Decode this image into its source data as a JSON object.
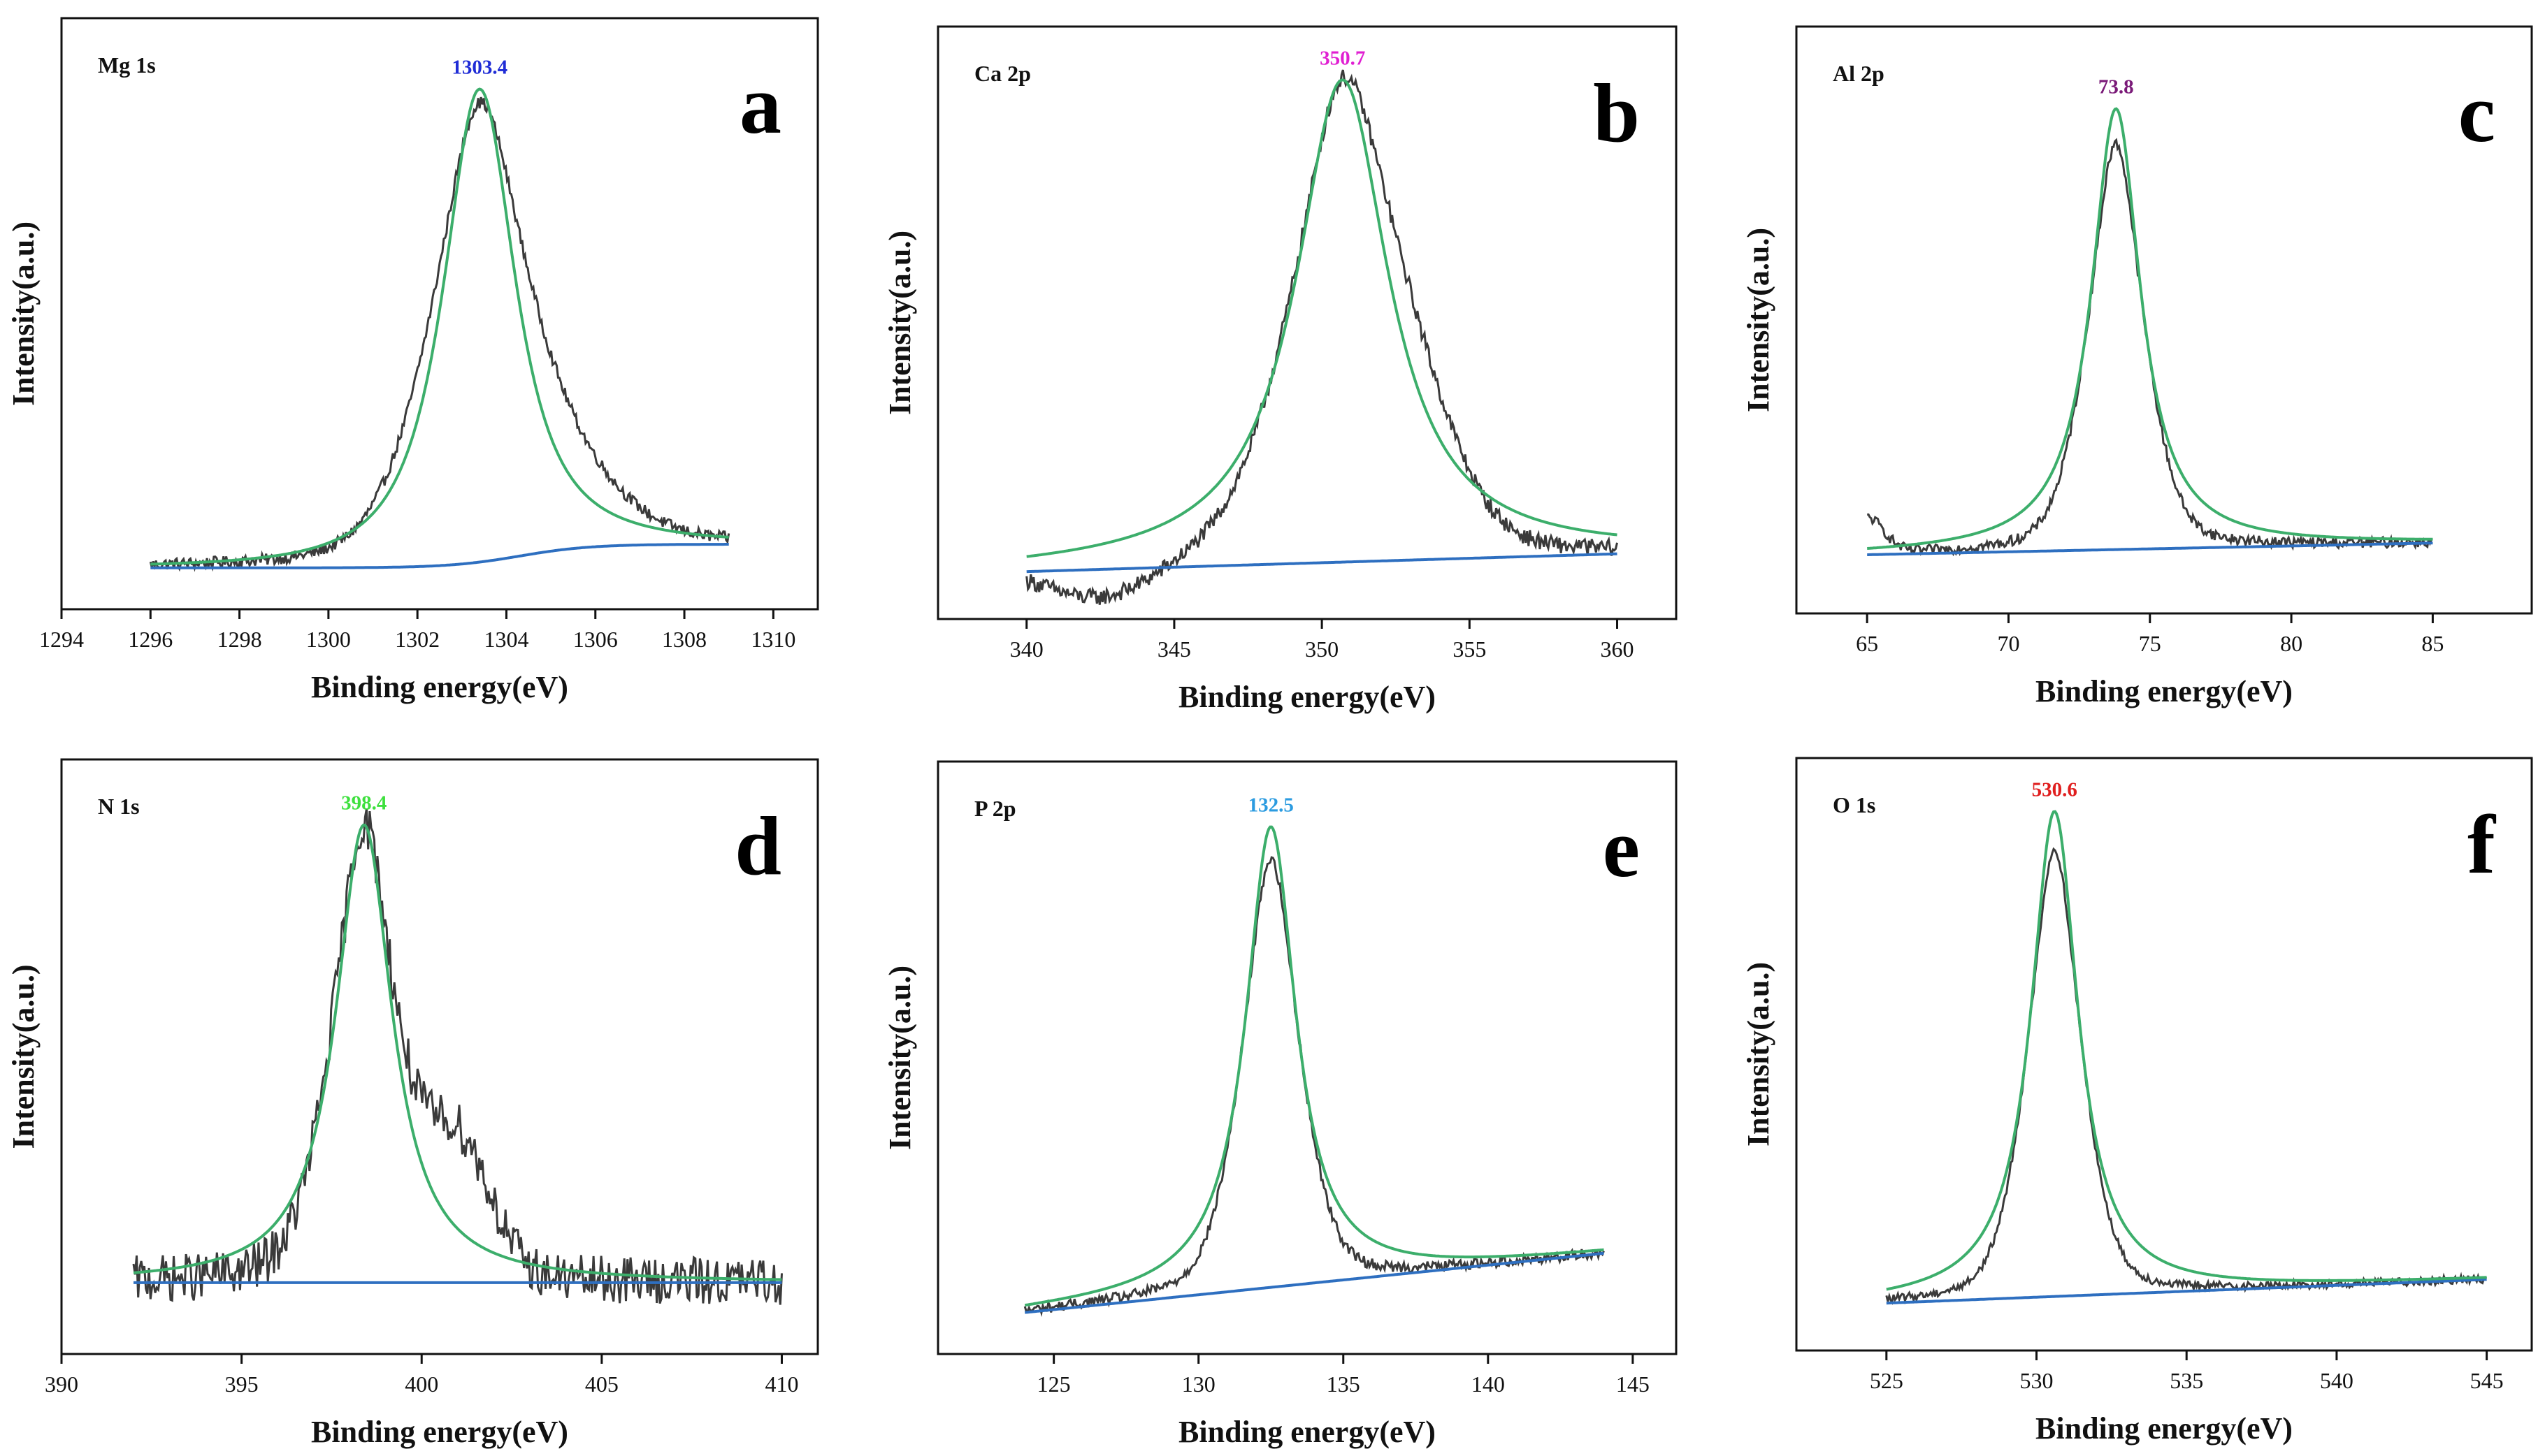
{
  "colors": {
    "raw": "#3a3a3a",
    "fit": "#3cae6b",
    "background": "#2e6fc0",
    "axis": "#111111"
  },
  "chart_data": [
    {
      "type": "line",
      "panel": "a",
      "element": "Mg 1s",
      "peak_label": "1303.4",
      "peak_label_color": "#1f2cd6",
      "xlabel": "Binding energy(eV)",
      "ylabel": "Intensity(a.u.)",
      "xlim": [
        1294,
        1311
      ],
      "ylim": [
        0,
        100
      ],
      "xticks": [
        1294,
        1296,
        1298,
        1300,
        1302,
        1304,
        1306,
        1308,
        1310
      ],
      "range": [
        1296,
        1309
      ],
      "peak_center": 1303.4,
      "peak_width": 1.15,
      "peak_top": 88,
      "base_start": 7,
      "base_end": 11,
      "base_shape": "step",
      "step_center": 1304.3,
      "raw_scale": 0.95,
      "raw_shoulder": [
        1305.5,
        1.2,
        8
      ],
      "noise": 1.0,
      "fit_tail": 1.3
    },
    {
      "type": "line",
      "panel": "b",
      "element": "Ca 2p",
      "peak_label": "350.7",
      "peak_label_color": "#e01fd2",
      "xlabel": "Binding energy(eV)",
      "ylabel": "Intensity(a.u.)",
      "xlim": [
        337,
        362
      ],
      "ylim": [
        0,
        100
      ],
      "xticks": [
        340,
        345,
        350,
        355,
        360
      ],
      "range": [
        340,
        360
      ],
      "peak_center": 350.7,
      "peak_width": 1.9,
      "peak_top": 91,
      "base_start": 8,
      "base_end": 11,
      "base_shape": "linear",
      "raw_scale": 0.96,
      "raw_shoulder": [
        353.2,
        1.6,
        12
      ],
      "raw_dip": [
        342.5,
        1.8,
        -6
      ],
      "noise": 1.4,
      "fit_tail": 1.0
    },
    {
      "type": "line",
      "panel": "c",
      "element": "Al 2p",
      "peak_label": "73.8",
      "peak_label_color": "#7a1a78",
      "xlabel": "Binding energy(eV)",
      "ylabel": "Intensity(a.u.)",
      "xlim": [
        62.5,
        88.5
      ],
      "ylim": [
        0,
        100
      ],
      "xticks": [
        65,
        70,
        75,
        80,
        85
      ],
      "range": [
        65,
        85
      ],
      "peak_center": 73.8,
      "peak_width": 1.05,
      "peak_top": 86,
      "base_start": 10,
      "base_end": 12,
      "base_shape": "linear",
      "raw_scale": 0.92,
      "raw_start_hump": [
        65.0,
        0.6,
        6
      ],
      "noise": 0.9,
      "fit_tail": 1.0
    },
    {
      "type": "line",
      "panel": "d",
      "element": "N 1s",
      "peak_label": "398.4",
      "peak_label_color": "#3ee03e",
      "xlabel": "Binding energy(eV)",
      "ylabel": "Intensity(a.u.)",
      "xlim": [
        390,
        411
      ],
      "ylim": [
        0,
        100
      ],
      "xticks": [
        390,
        395,
        400,
        405,
        410
      ],
      "range": [
        392,
        410
      ],
      "peak_center": 398.4,
      "peak_width": 0.95,
      "peak_top": 89,
      "base_start": 12,
      "base_end": 12,
      "base_shape": "linear",
      "raw_scale": 1.0,
      "raw_shoulder": [
        401.0,
        0.9,
        22
      ],
      "noise": 4.0,
      "fit_tail": 1.0
    },
    {
      "type": "line",
      "panel": "e",
      "element": "P 2p",
      "peak_label": "132.5",
      "peak_label_color": "#2b9be0",
      "xlabel": "Binding energy(eV)",
      "ylabel": "Intensity(a.u.)",
      "xlim": [
        121,
        146.5
      ],
      "ylim": [
        0,
        100
      ],
      "xticks": [
        125,
        130,
        135,
        140,
        145
      ],
      "range": [
        124,
        144
      ],
      "peak_center": 132.5,
      "peak_width": 1.05,
      "peak_top": 89,
      "base_start": 7,
      "base_end": 17,
      "base_shape": "linear",
      "raw_scale": 0.93,
      "noise": 0.9,
      "fit_tail": 1.0
    },
    {
      "type": "line",
      "panel": "f",
      "element": "O 1s",
      "peak_label": "530.6",
      "peak_label_color": "#e01f1f",
      "xlabel": "Binding energy(eV)",
      "ylabel": "Intensity(a.u.)",
      "xlim": [
        522,
        546.5
      ],
      "ylim": [
        0,
        100
      ],
      "xticks": [
        525,
        530,
        535,
        540,
        545
      ],
      "range": [
        525,
        545
      ],
      "peak_center": 530.6,
      "peak_width": 0.95,
      "peak_top": 91,
      "base_start": 8,
      "base_end": 12,
      "base_shape": "linear",
      "raw_scale": 0.92,
      "noise": 0.7,
      "fit_tail": 1.0
    }
  ]
}
